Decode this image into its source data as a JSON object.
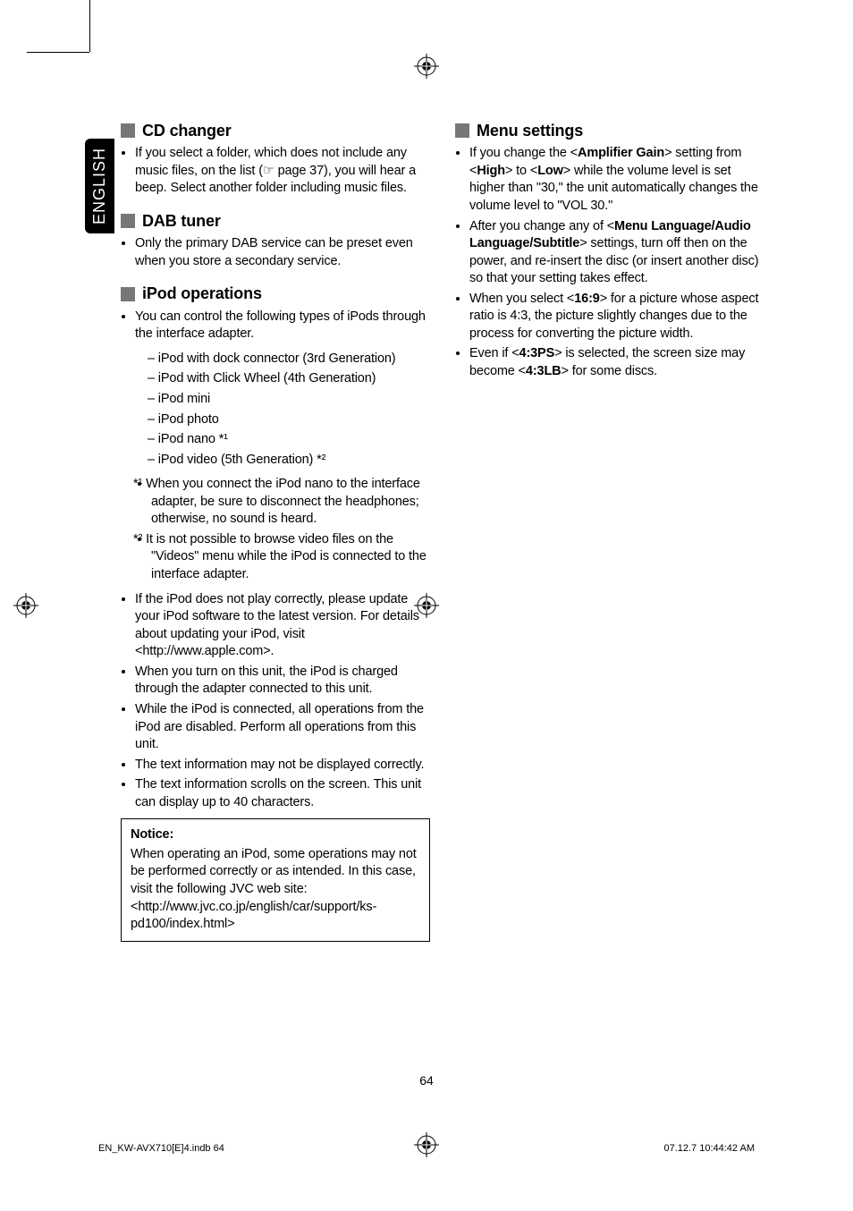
{
  "sideTab": "ENGLISH",
  "left": {
    "sections": [
      {
        "title": "CD changer",
        "bullets": [
          "If you select a folder, which does not include any music files, on the list (☞ page 37), you will hear a beep. Select another folder including music files."
        ]
      },
      {
        "title": "DAB tuner",
        "bullets": [
          "Only the primary DAB service can be preset even when you store a secondary service."
        ]
      },
      {
        "title": "iPod operations",
        "bullets_pre": [
          "You can control the following types of iPods through the interface adapter."
        ],
        "sublist": [
          "– iPod with dock connector (3rd Generation)",
          "– iPod with Click Wheel (4th Generation)",
          "– iPod mini",
          "– iPod photo",
          "– iPod nano *¹",
          "– iPod video (5th Generation) *²"
        ],
        "footnotes": [
          "*¹  When you connect the iPod nano to the interface adapter, be sure to disconnect the headphones; otherwise, no sound is heard.",
          "*²  It is not possible to browse video files on the \"Videos\" menu while the iPod is connected to the interface adapter."
        ],
        "bullets_post": [
          "If the iPod does not play correctly, please update your iPod software to the latest version. For details about updating your iPod, visit <http://www.apple.com>.",
          "When you turn on this unit, the iPod is charged through the adapter connected to this unit.",
          "While the iPod is connected, all operations from the iPod are disabled. Perform all operations from this unit.",
          "The text information may not be displayed correctly.",
          "The text information scrolls on the screen. This unit can display up to 40 characters."
        ],
        "notice": {
          "title": "Notice:",
          "body": "When operating an iPod, some operations may not be performed correctly or as intended. In this case, visit the following JVC web site:\n<http://www.jvc.co.jp/english/car/support/ks-pd100/index.html>"
        }
      }
    ]
  },
  "right": {
    "title": "Menu settings",
    "bullets": [
      {
        "pre": "If you change the <",
        "b1": "Amplifier Gain",
        "mid1": "> setting from <",
        "b2": "High",
        "mid2": "> to <",
        "b3": "Low",
        "post": "> while the volume level is set higher than \"30,\" the unit automatically changes the volume level to \"VOL 30.\""
      },
      {
        "pre": "After you change any of <",
        "b1": "Menu Language/Audio Language/Subtitle",
        "post": "> settings, turn off then on the power, and re-insert the disc (or insert another disc) so that your setting takes effect."
      },
      {
        "pre": "When you select <",
        "b1": "16:9",
        "post": "> for a picture whose aspect ratio is 4:3, the picture slightly changes due to the process for converting the picture width."
      },
      {
        "pre": "Even if <",
        "b1": "4:3PS",
        "mid1": "> is selected, the screen size may become <",
        "b2": "4:3LB",
        "post": "> for some discs."
      }
    ]
  },
  "pageNumber": "64",
  "footer": {
    "left": "EN_KW-AVX710[E]4.indb   64",
    "right": "07.12.7   10:44:42 AM"
  },
  "colors": {
    "sectionMarker": "#777777",
    "text": "#000000",
    "background": "#ffffff"
  }
}
